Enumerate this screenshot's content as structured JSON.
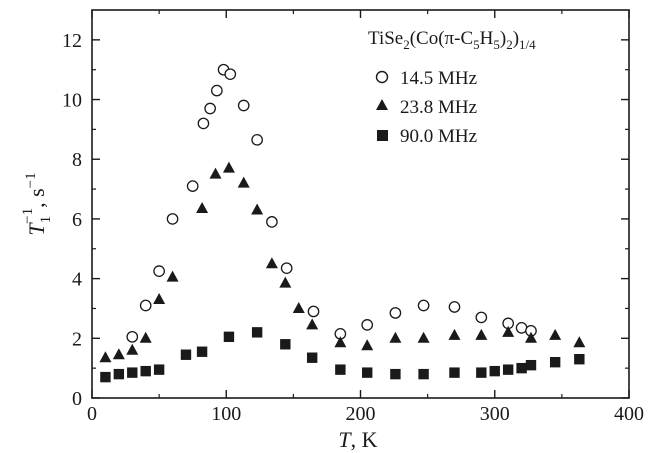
{
  "chart_data": {
    "type": "scatter",
    "xlabel_main": "T",
    "xlabel_unit": ", K",
    "ylabel_main": "T",
    "ylabel_sub": "1",
    "ylabel_sup": "−1",
    "ylabel_unit": ", s",
    "ylabel_unit_sup": "−1",
    "xlim": [
      0,
      400
    ],
    "ylim": [
      0,
      13
    ],
    "xticks": [
      0,
      100,
      200,
      300,
      400
    ],
    "yticks": [
      0,
      2,
      4,
      6,
      8,
      10,
      12
    ],
    "legend_position": "top-right",
    "legend_title_parts": {
      "a": "TiSe",
      "a_sub": "2",
      "b": "(Co(π-C",
      "b_sub": "5",
      "c": "H",
      "c_sub": "5",
      "d": ")",
      "d_sub": "2",
      "e": ")",
      "e_sub": "1/4"
    },
    "series": [
      {
        "name": "14.5 MHz",
        "marker": "open-circle",
        "x": [
          30,
          40,
          50,
          60,
          75,
          83,
          88,
          93,
          98,
          103,
          113,
          123,
          134,
          145,
          165,
          185,
          205,
          226,
          247,
          270,
          290,
          310,
          320,
          327
        ],
        "y": [
          2.05,
          3.1,
          4.25,
          6.0,
          7.1,
          9.2,
          9.7,
          10.3,
          11.0,
          10.85,
          9.8,
          8.65,
          5.9,
          4.35,
          2.9,
          2.15,
          2.45,
          2.85,
          3.1,
          3.05,
          2.7,
          2.5,
          2.35,
          2.25
        ]
      },
      {
        "name": "23.8 MHz",
        "marker": "filled-triangle",
        "x": [
          10,
          20,
          30,
          40,
          50,
          60,
          82,
          92,
          102,
          113,
          123,
          134,
          144,
          154,
          164,
          185,
          205,
          226,
          247,
          270,
          290,
          310,
          327,
          345,
          363
        ],
        "y": [
          1.35,
          1.45,
          1.6,
          2.0,
          3.3,
          4.05,
          6.35,
          7.5,
          7.7,
          7.2,
          6.3,
          4.5,
          3.85,
          3.0,
          2.45,
          1.85,
          1.75,
          2.0,
          2.0,
          2.1,
          2.1,
          2.2,
          2.0,
          2.1,
          1.85
        ]
      },
      {
        "name": "90.0 MHz",
        "marker": "filled-square",
        "x": [
          10,
          20,
          30,
          40,
          50,
          70,
          82,
          102,
          123,
          144,
          164,
          185,
          205,
          226,
          247,
          270,
          290,
          300,
          310,
          320,
          327,
          345,
          363
        ],
        "y": [
          0.7,
          0.8,
          0.85,
          0.9,
          0.95,
          1.45,
          1.55,
          2.05,
          2.2,
          1.8,
          1.35,
          0.95,
          0.85,
          0.8,
          0.8,
          0.85,
          0.85,
          0.9,
          0.95,
          1.0,
          1.1,
          1.2,
          1.3
        ]
      }
    ]
  }
}
